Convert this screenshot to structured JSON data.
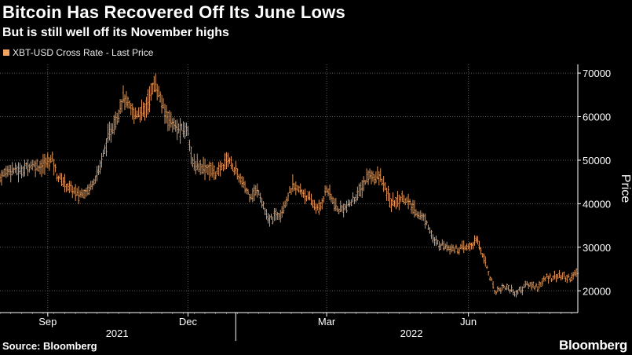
{
  "header": {
    "title": "Bitcoin Has Recovered Off Its June Lows",
    "subtitle": "But is still well off its November highs"
  },
  "legend": {
    "label": "XBT-USD Cross Rate - Last Price"
  },
  "footer": {
    "source": "Source: Bloomberg",
    "brand": "Bloomberg"
  },
  "colors": {
    "series": "#f4a460",
    "grid": "#5a5a5a",
    "background": "#000000"
  },
  "chart_data": {
    "type": "line",
    "ylabel": "Price",
    "ylim": [
      15000,
      72000
    ],
    "yticks": [
      20000,
      30000,
      40000,
      50000,
      60000,
      70000
    ],
    "ytick_labels": [
      "20000",
      "30000",
      "40000",
      "50000",
      "60000",
      "70000"
    ],
    "xlim": [
      "2021-08-01",
      "2022-08-11"
    ],
    "xticks": [
      {
        "date": "2021-09-01",
        "label": "Sep"
      },
      {
        "date": "2021-12-01",
        "label": "Dec"
      },
      {
        "date": "2022-03-01",
        "label": "Mar"
      },
      {
        "date": "2022-06-01",
        "label": "Jun"
      }
    ],
    "year_labels": [
      {
        "date": "2021-10-16",
        "label": "2021"
      },
      {
        "date": "2022-04-25",
        "label": "2022"
      }
    ],
    "year_divider": "2022-01-01",
    "grid": true,
    "legend_position": "top-left",
    "series": [
      {
        "name": "XBT-USD Cross Rate - Last Price",
        "x": [
          "2021-08-01",
          "2021-08-07",
          "2021-08-14",
          "2021-08-21",
          "2021-08-28",
          "2021-09-04",
          "2021-09-07",
          "2021-09-14",
          "2021-09-21",
          "2021-09-28",
          "2021-10-04",
          "2021-10-10",
          "2021-10-16",
          "2021-10-20",
          "2021-10-27",
          "2021-11-03",
          "2021-11-08",
          "2021-11-10",
          "2021-11-16",
          "2021-11-24",
          "2021-12-01",
          "2021-12-04",
          "2021-12-11",
          "2021-12-20",
          "2021-12-27",
          "2022-01-04",
          "2022-01-10",
          "2022-01-16",
          "2022-01-22",
          "2022-01-30",
          "2022-02-07",
          "2022-02-14",
          "2022-02-24",
          "2022-03-01",
          "2022-03-08",
          "2022-03-15",
          "2022-03-22",
          "2022-03-28",
          "2022-04-05",
          "2022-04-12",
          "2022-04-20",
          "2022-04-27",
          "2022-05-05",
          "2022-05-10",
          "2022-05-17",
          "2022-05-25",
          "2022-06-01",
          "2022-06-07",
          "2022-06-12",
          "2022-06-18",
          "2022-06-25",
          "2022-07-02",
          "2022-07-09",
          "2022-07-16",
          "2022-07-22",
          "2022-07-29",
          "2022-08-05",
          "2022-08-11"
        ],
        "y": [
          46000,
          48000,
          47500,
          49000,
          48500,
          50500,
          46500,
          44000,
          42000,
          43500,
          47500,
          55000,
          60000,
          64500,
          60500,
          61500,
          66500,
          67500,
          61000,
          57000,
          57000,
          49000,
          48500,
          47000,
          50500,
          45500,
          42000,
          43000,
          36000,
          38000,
          44000,
          42500,
          38500,
          43500,
          38500,
          39500,
          42500,
          46500,
          46000,
          40000,
          41500,
          38500,
          36000,
          31000,
          30500,
          29500,
          30000,
          31500,
          26500,
          20000,
          21000,
          19500,
          21500,
          21000,
          23000,
          23500,
          23000,
          24000
        ]
      }
    ]
  }
}
